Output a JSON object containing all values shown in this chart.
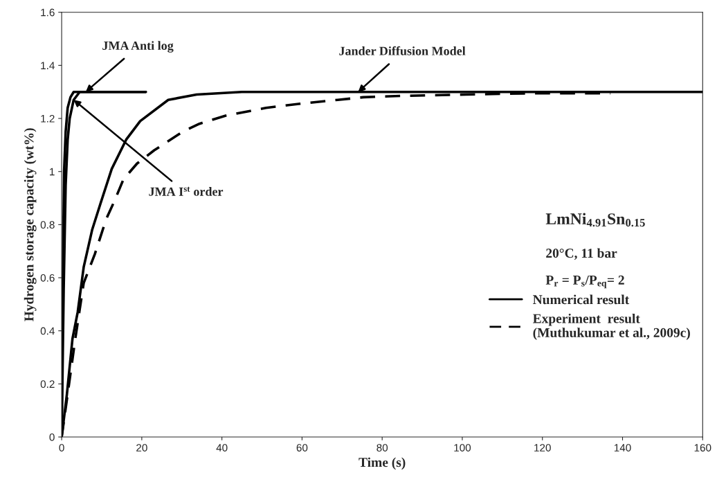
{
  "chart_data": {
    "type": "line",
    "xlabel": "Time (s)",
    "ylabel": "Hydrogen storage capacity (wt%)",
    "xlim": [
      0,
      160
    ],
    "xticks": [
      0,
      20,
      40,
      60,
      80,
      100,
      120,
      140,
      160
    ],
    "ylim": [
      0,
      1.6
    ],
    "yticks": [
      0,
      0.2,
      0.4,
      0.6,
      0.8,
      1,
      1.2,
      1.4,
      1.6
    ],
    "grid": false,
    "legend": "bottom right",
    "marker": "none",
    "series": [
      {
        "color": "#000000",
        "line_style": "solid",
        "x": [
          0,
          0.3,
          0.6,
          1,
          1.5,
          2.2,
          3,
          21
        ],
        "values": [
          0,
          0.6,
          1.0,
          1.15,
          1.24,
          1.28,
          1.3,
          1.3
        ]
      },
      {
        "color": "#000000",
        "line_style": "solid",
        "x": [
          0,
          0.5,
          1,
          1.5,
          2,
          3,
          4.5,
          21
        ],
        "values": [
          0,
          0.55,
          0.95,
          1.12,
          1.2,
          1.27,
          1.3,
          1.3
        ]
      },
      {
        "name": "Numerical result",
        "color": "#000000",
        "line_style": "solid",
        "x": [
          0,
          1.3,
          2.7,
          4,
          5.5,
          7.6,
          9.7,
          12.5,
          16.1,
          19.6,
          26.6,
          33.7,
          45,
          160
        ],
        "values": [
          0,
          0.16,
          0.37,
          0.47,
          0.64,
          0.78,
          0.88,
          1.01,
          1.12,
          1.19,
          1.27,
          1.29,
          1.3,
          1.3
        ]
      },
      {
        "name": "Experiment  result\n(Muthukumar et al., 2009c)",
        "color": "#000000",
        "line_style": "dashed",
        "x": [
          0,
          1.3,
          3.4,
          5.5,
          8.3,
          11.1,
          13.2,
          15.4,
          18.8,
          23.1,
          30.2,
          34.4,
          40.8,
          51,
          59.2,
          68.9,
          75.3,
          85,
          101,
          117.5,
          137
        ],
        "values": [
          0,
          0.14,
          0.37,
          0.58,
          0.69,
          0.82,
          0.89,
          0.97,
          1.03,
          1.08,
          1.15,
          1.18,
          1.21,
          1.24,
          1.255,
          1.27,
          1.28,
          1.285,
          1.29,
          1.295,
          1.295
        ]
      }
    ],
    "annotations": [
      {
        "text": "JMA Anti log",
        "x": 6,
        "y": 1.3
      },
      {
        "text": "JMA I$^{st}$ order",
        "x": 3,
        "y": 1.27
      },
      {
        "text": "Jander Diffusion Model",
        "x": 74,
        "y": 1.3
      },
      "LmNi$_{4.91}$Sn$_{0.15}$",
      "20°C, 11 bar",
      "P$_{r}$ = P$_{s}$/P$_{eq}$= 2"
    ]
  }
}
